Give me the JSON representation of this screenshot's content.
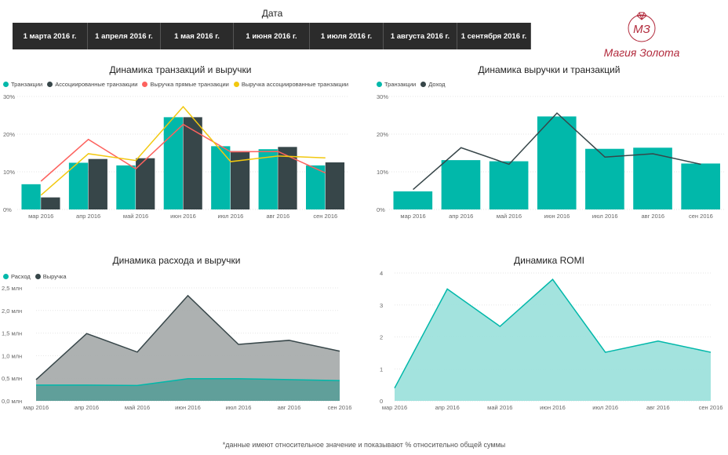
{
  "slicer": {
    "title": "Дата",
    "dates": [
      "1 марта 2016 г.",
      "1 апреля 2016 г.",
      "1 мая 2016 г.",
      "1 июня 2016 г.",
      "1 июля 2016 г.",
      "1 августа 2016 г.",
      "1 сентября 2016 г."
    ]
  },
  "logo": {
    "text": "Магия Золота",
    "monogram": "МЗ",
    "color": "#b22a3c"
  },
  "colors": {
    "teal": "#01b8aa",
    "dark": "#374649",
    "red": "#fd625e",
    "yellow": "#f2c80f",
    "grey_area": "#a9adad",
    "teal_area": "#9ee2dc"
  },
  "chart_data": [
    {
      "type": "bar",
      "title": "Динамика транзакций и выручки",
      "categories": [
        "мар 2016",
        "апр 2016",
        "май 2016",
        "июн 2016",
        "июл 2016",
        "авг 2016",
        "сен 2016"
      ],
      "y_ticks": [
        "0%",
        "10%",
        "20%",
        "30%"
      ],
      "ylim": [
        0,
        30
      ],
      "series": [
        {
          "name": "Транзакции",
          "kind": "bar",
          "color": "#01b8aa",
          "values": [
            6.7,
            12.4,
            11.7,
            24.5,
            16.8,
            16.0,
            11.7
          ]
        },
        {
          "name": "Ассоциированные транзакции",
          "kind": "bar",
          "color": "#374649",
          "values": [
            3.2,
            13.4,
            13.6,
            24.5,
            15.5,
            16.6,
            12.5
          ]
        },
        {
          "name": "Выручка прямые транзакции",
          "kind": "line",
          "color": "#fd625e",
          "values": [
            7.5,
            18.6,
            10.8,
            22.6,
            15.3,
            15.4,
            9.7
          ]
        },
        {
          "name": "Выручка ассоциированные транзакции",
          "kind": "line",
          "color": "#f2c80f",
          "values": [
            3.8,
            14.8,
            13.0,
            27.3,
            12.7,
            14.2,
            13.7
          ]
        }
      ]
    },
    {
      "type": "bar",
      "title": "Динамика выручки и транзакций",
      "categories": [
        "мар 2016",
        "апр 2016",
        "май 2016",
        "июн 2016",
        "июл 2016",
        "авг 2016",
        "сен 2016"
      ],
      "y_ticks": [
        "0%",
        "10%",
        "20%",
        "30%"
      ],
      "ylim": [
        0,
        30
      ],
      "series": [
        {
          "name": "Транзакции",
          "kind": "bar",
          "color": "#01b8aa",
          "values": [
            4.8,
            13.1,
            12.8,
            24.7,
            16.1,
            16.4,
            12.2
          ]
        },
        {
          "name": "Доход",
          "kind": "line",
          "color": "#374649",
          "values": [
            5.3,
            16.4,
            12.0,
            25.6,
            13.9,
            14.8,
            12.0
          ]
        }
      ]
    },
    {
      "type": "area",
      "title": "Динамика расхода и выручки",
      "categories": [
        "мар 2016",
        "апр 2016",
        "май 2016",
        "июн 2016",
        "июл 2016",
        "авг 2016",
        "сен 2016"
      ],
      "y_ticks": [
        "0,0 млн",
        "0,5 млн",
        "1,0 млн",
        "1,5 млн",
        "2,0 млн",
        "2,5 млн"
      ],
      "ylim": [
        0,
        2.5
      ],
      "series": [
        {
          "name": "Выручка",
          "color": "#374649",
          "fill": "#a9adad",
          "values": [
            0.47,
            1.49,
            1.08,
            2.33,
            1.25,
            1.34,
            1.1
          ]
        },
        {
          "name": "Расход",
          "color": "#01b8aa",
          "fill": "#5c9e99",
          "values": [
            0.35,
            0.35,
            0.34,
            0.49,
            0.49,
            0.47,
            0.45
          ]
        }
      ]
    },
    {
      "type": "area",
      "title": "Динамика ROMI",
      "categories": [
        "мар 2016",
        "апр 2016",
        "май 2016",
        "июн 2016",
        "июл 2016",
        "авг 2016",
        "сен 2016"
      ],
      "y_ticks": [
        "0",
        "1",
        "2",
        "3",
        "4"
      ],
      "ylim": [
        0,
        4
      ],
      "series": [
        {
          "name": "",
          "color": "#01b8aa",
          "fill": "#9ee2dc",
          "values": [
            0.4,
            3.5,
            2.33,
            3.8,
            1.52,
            1.87,
            1.52
          ]
        }
      ]
    }
  ],
  "footnote": "*данные имеют относительное значение и показывают % относительно общей суммы"
}
